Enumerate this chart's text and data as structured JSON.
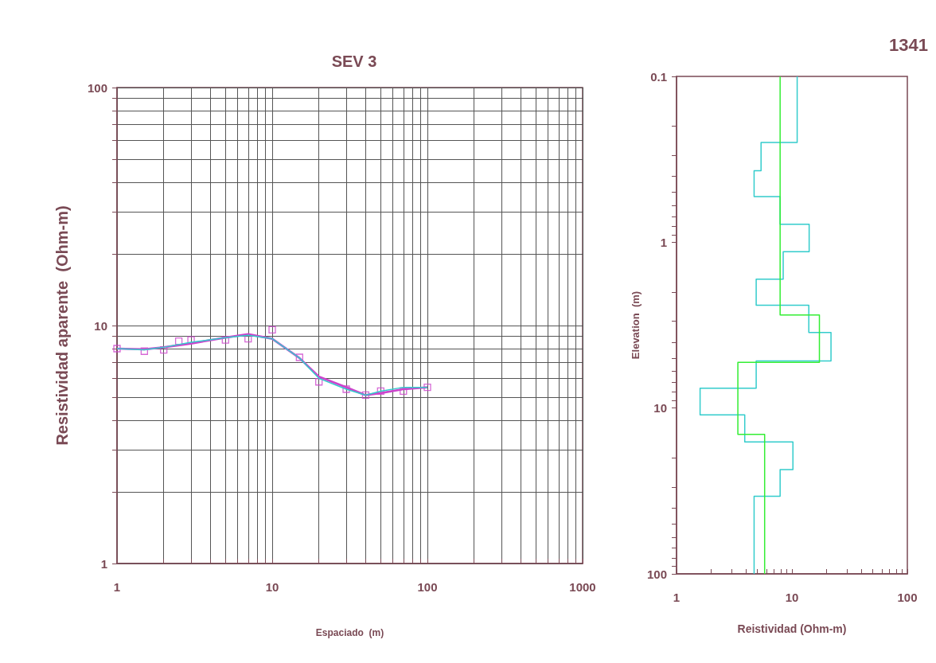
{
  "chart_data": [
    {
      "type": "line",
      "title": "SEV 3",
      "xlabel": "Espaciado  (m)",
      "ylabel": "Resistividad aparente  (Ohm-m)",
      "log": "xy",
      "grid": true,
      "xlim": [
        1,
        1000
      ],
      "ylim": [
        1,
        100
      ],
      "xticks": [
        1,
        {
          "value": 2,
          "label": null
        },
        {
          "value": 3,
          "label": null
        },
        {
          "value": 4,
          "label": null
        },
        {
          "value": 5,
          "label": null
        },
        {
          "value": 6,
          "label": null
        },
        {
          "value": 7,
          "label": null
        },
        {
          "value": 8,
          "label": null
        },
        {
          "value": 9,
          "label": null
        },
        10,
        {
          "value": 20,
          "label": null
        },
        {
          "value": 30,
          "label": null
        },
        {
          "value": 40,
          "label": null
        },
        {
          "value": 50,
          "label": null
        },
        {
          "value": 60,
          "label": null
        },
        {
          "value": 70,
          "label": null
        },
        {
          "value": 80,
          "label": null
        },
        {
          "value": 90,
          "label": null
        },
        100,
        {
          "value": 200,
          "label": null
        },
        {
          "value": 300,
          "label": null
        },
        {
          "value": 400,
          "label": null
        },
        {
          "value": 500,
          "label": null
        },
        {
          "value": 600,
          "label": null
        },
        {
          "value": 700,
          "label": null
        },
        {
          "value": 800,
          "label": null
        },
        {
          "value": 900,
          "label": null
        },
        1000
      ],
      "yticks": [
        1,
        {
          "value": 2,
          "label": null
        },
        {
          "value": 3,
          "label": null
        },
        {
          "value": 4,
          "label": null
        },
        {
          "value": 5,
          "label": null
        },
        {
          "value": 6,
          "label": null
        },
        {
          "value": 7,
          "label": null
        },
        {
          "value": 8,
          "label": null
        },
        {
          "value": 9,
          "label": null
        },
        10,
        {
          "value": 20,
          "label": null
        },
        {
          "value": 30,
          "label": null
        },
        {
          "value": 40,
          "label": null
        },
        {
          "value": 50,
          "label": null
        },
        {
          "value": 60,
          "label": null
        },
        {
          "value": 70,
          "label": null
        },
        {
          "value": 80,
          "label": null
        },
        {
          "value": 90,
          "label": null
        },
        100
      ],
      "series": [
        {
          "marker": "none",
          "color": "#cc44cc",
          "x": [
            1,
            1.5,
            2,
            3,
            5,
            7,
            10,
            15,
            20,
            30,
            40,
            50,
            70,
            100
          ],
          "values": [
            8.0,
            7.95,
            8.1,
            8.4,
            8.9,
            9.2,
            8.8,
            7.3,
            6.1,
            5.5,
            5.1,
            5.2,
            5.4,
            5.5
          ]
        },
        {
          "marker": "none",
          "color": "#33cccc",
          "x": [
            1,
            1.5,
            2,
            3,
            5,
            7,
            10,
            15,
            20,
            30,
            40,
            50,
            70,
            100
          ],
          "values": [
            8.0,
            7.9,
            8.1,
            8.5,
            8.9,
            9.1,
            8.8,
            7.3,
            6.0,
            5.4,
            5.1,
            5.3,
            5.5,
            5.5
          ]
        },
        {
          "type": "scatter",
          "marker": "square",
          "color": "#cc44cc",
          "x": [
            1,
            1.5,
            2,
            2.5,
            3,
            5,
            7,
            10,
            15,
            20,
            30,
            40,
            50,
            70,
            100
          ],
          "values": [
            8.0,
            7.8,
            7.9,
            8.6,
            8.7,
            8.7,
            8.8,
            9.6,
            7.35,
            5.8,
            5.4,
            5.1,
            5.3,
            5.3,
            5.5
          ]
        }
      ]
    },
    {
      "type": "line",
      "xlabel": "Reistividad (Ohm-m)",
      "ylabel": "Elevation  (m)",
      "annotations": [
        "1341"
      ],
      "log": "xy",
      "grid": false,
      "marker": "none",
      "xlim": [
        1,
        100
      ],
      "ylim": [
        100,
        0.1
      ],
      "xticks": [
        1,
        {
          "value": 2,
          "label": null
        },
        {
          "value": 3,
          "label": null
        },
        {
          "value": 4,
          "label": null
        },
        {
          "value": 5,
          "label": null
        },
        {
          "value": 6,
          "label": null
        },
        {
          "value": 7,
          "label": null
        },
        {
          "value": 8,
          "label": null
        },
        {
          "value": 9,
          "label": null
        },
        10,
        {
          "value": 20,
          "label": null
        },
        {
          "value": 30,
          "label": null
        },
        {
          "value": 40,
          "label": null
        },
        {
          "value": 50,
          "label": null
        },
        {
          "value": 60,
          "label": null
        },
        {
          "value": 70,
          "label": null
        },
        {
          "value": 80,
          "label": null
        },
        {
          "value": 90,
          "label": null
        },
        100
      ],
      "yticks": [
        0.1,
        {
          "value": 0.2,
          "label": null
        },
        {
          "value": 0.3,
          "label": null
        },
        {
          "value": 0.4,
          "label": null
        },
        {
          "value": 0.5,
          "label": null
        },
        {
          "value": 0.6,
          "label": null
        },
        {
          "value": 0.7,
          "label": null
        },
        {
          "value": 0.8,
          "label": null
        },
        {
          "value": 0.9,
          "label": null
        },
        1,
        {
          "value": 2,
          "label": null
        },
        {
          "value": 3,
          "label": null
        },
        {
          "value": 4,
          "label": null
        },
        {
          "value": 5,
          "label": null
        },
        {
          "value": 6,
          "label": null
        },
        {
          "value": 7,
          "label": null
        },
        {
          "value": 8,
          "label": null
        },
        {
          "value": 9,
          "label": null
        },
        10,
        {
          "value": 20,
          "label": null
        },
        {
          "value": 30,
          "label": null
        },
        {
          "value": 40,
          "label": null
        },
        {
          "value": 50,
          "label": null
        },
        {
          "value": 60,
          "label": null
        },
        {
          "value": 70,
          "label": null
        },
        {
          "value": 80,
          "label": null
        },
        {
          "value": 90,
          "label": null
        },
        100
      ],
      "series": [
        {
          "color": "#33cccc",
          "x": [
            11.1,
            11.1,
            5.4,
            5.4,
            4.7,
            4.7,
            7.9,
            7.9,
            14.1,
            14.1,
            8.4,
            8.4,
            4.9,
            4.9,
            14,
            14,
            21.8,
            21.8,
            4.9,
            4.9,
            1.6,
            1.6,
            3.9,
            3.9,
            10.2,
            10.2,
            7.9,
            7.9,
            4.7,
            4.7
          ],
          "values": [
            0.1,
            0.25,
            0.25,
            0.37,
            0.37,
            0.53,
            0.53,
            0.78,
            0.78,
            1.14,
            1.14,
            1.67,
            1.67,
            2.4,
            2.4,
            3.5,
            3.5,
            5.2,
            5.2,
            7.6,
            7.6,
            11,
            11,
            16,
            16,
            23.5,
            23.5,
            34,
            34,
            100
          ]
        },
        {
          "color": "#33ee33",
          "x": [
            7.9,
            7.9,
            17.3,
            17.3,
            3.4,
            3.4,
            5.8,
            5.8
          ],
          "values": [
            0.1,
            2.75,
            2.75,
            5.3,
            5.3,
            14.4,
            14.4,
            100
          ]
        }
      ]
    }
  ]
}
